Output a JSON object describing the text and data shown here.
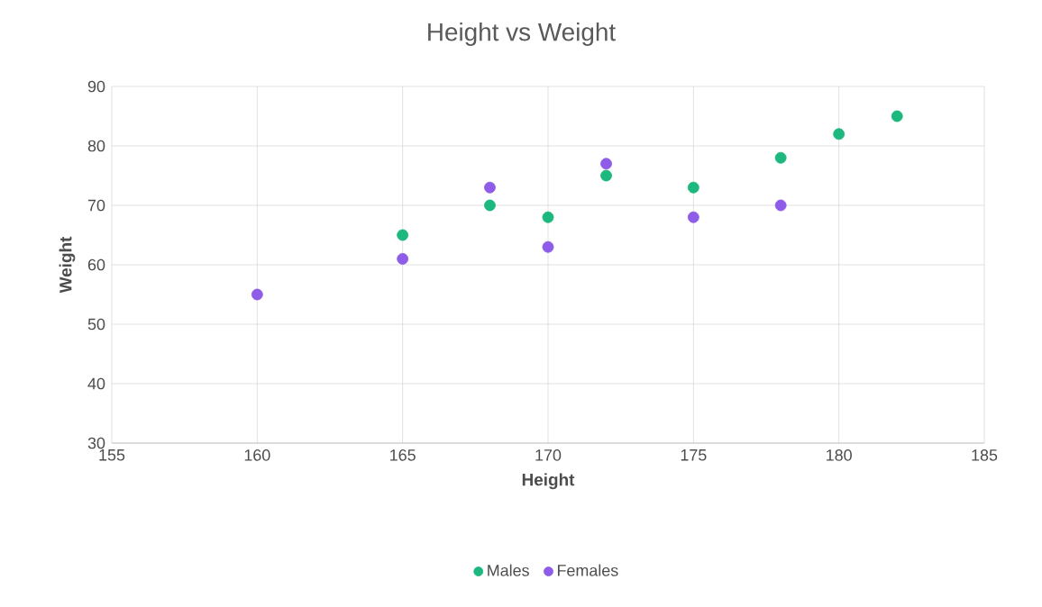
{
  "chart_data": {
    "type": "scatter",
    "title": "Height vs Weight",
    "xlabel": "Height",
    "ylabel": "Weight",
    "xlim": [
      155,
      185
    ],
    "xticks": [
      155,
      160,
      165,
      170,
      175,
      180,
      185
    ],
    "ylim": [
      30,
      90
    ],
    "yticks": [
      30,
      40,
      50,
      60,
      70,
      80,
      90
    ],
    "grid": true,
    "legend": "bottom",
    "marker": "circle",
    "series": [
      {
        "name": "Males",
        "color": "#1cb87e",
        "x": [
          165,
          168,
          170,
          172,
          175,
          178,
          180,
          182
        ],
        "values": [
          65,
          70,
          68,
          75,
          73,
          78,
          82,
          85
        ]
      },
      {
        "name": "Females",
        "color": "#8e5ce8",
        "x": [
          160,
          165,
          168,
          170,
          172,
          175,
          178
        ],
        "values": [
          55,
          61,
          73,
          63,
          77,
          68,
          70
        ]
      }
    ]
  }
}
